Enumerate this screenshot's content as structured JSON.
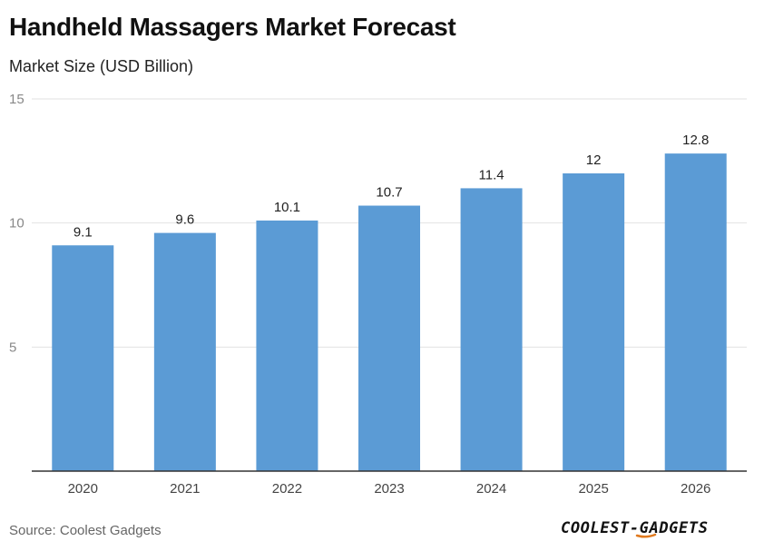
{
  "header": {
    "title": "Handheld Massagers Market Forecast",
    "subtitle": "Market Size (USD Billion)"
  },
  "chart_data": {
    "type": "bar",
    "categories": [
      "2020",
      "2021",
      "2022",
      "2023",
      "2024",
      "2025",
      "2026"
    ],
    "values": [
      9.1,
      9.6,
      10.1,
      10.7,
      11.4,
      12,
      12.8
    ],
    "data_labels": [
      "9.1",
      "9.6",
      "10.1",
      "10.7",
      "11.4",
      "12",
      "12.8"
    ],
    "yticks": [
      5,
      10,
      15
    ],
    "ylim": [
      0,
      15
    ],
    "grid": true,
    "legend": "none",
    "bar_color": "#5b9bd5"
  },
  "footer": {
    "source": "Source: Coolest Gadgets",
    "brand": "COOLEST-GADGETS"
  }
}
